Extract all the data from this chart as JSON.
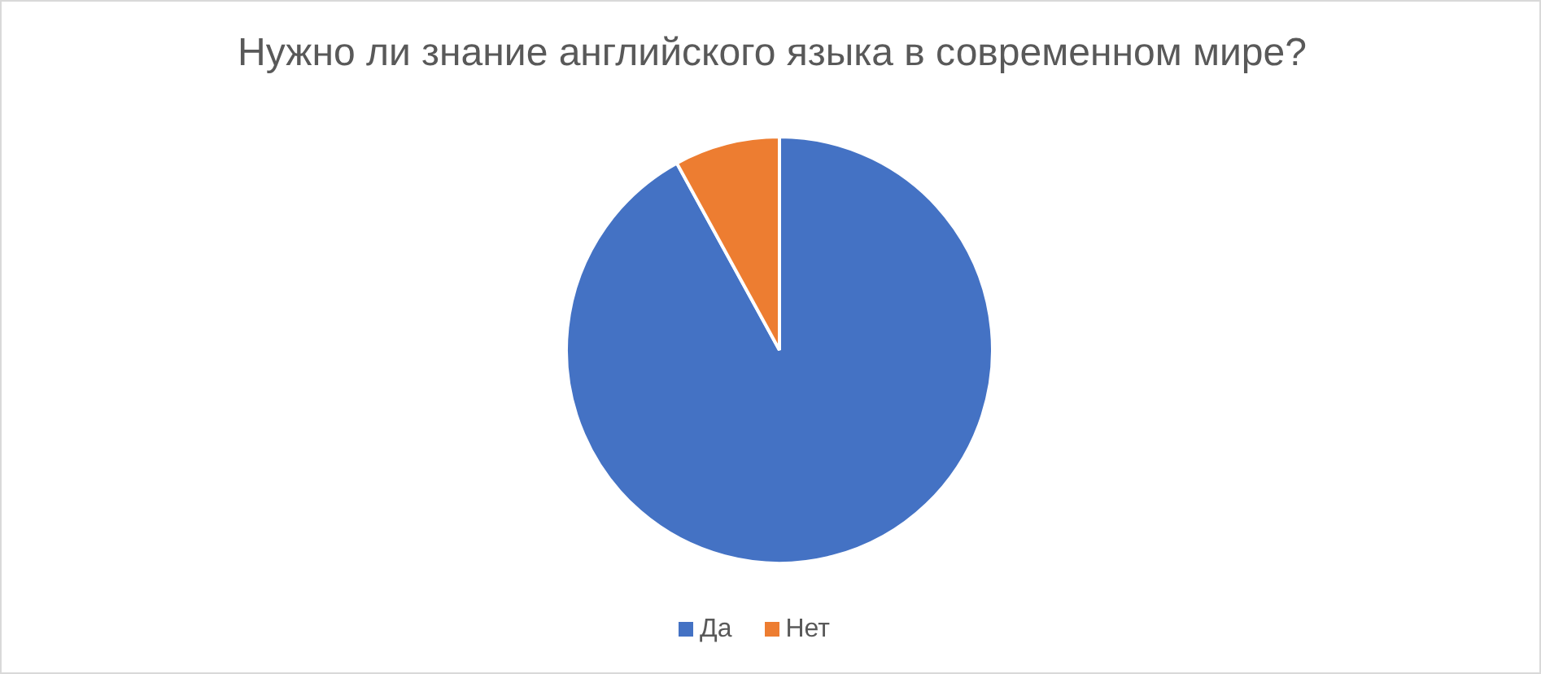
{
  "chart_data": {
    "type": "pie",
    "title": "Нужно ли знание английского языка в современном мире?",
    "categories": [
      "Да",
      "Нет"
    ],
    "values": [
      92,
      8
    ],
    "colors": [
      "#4472c4",
      "#ed7d31"
    ],
    "legend": "bottom"
  }
}
